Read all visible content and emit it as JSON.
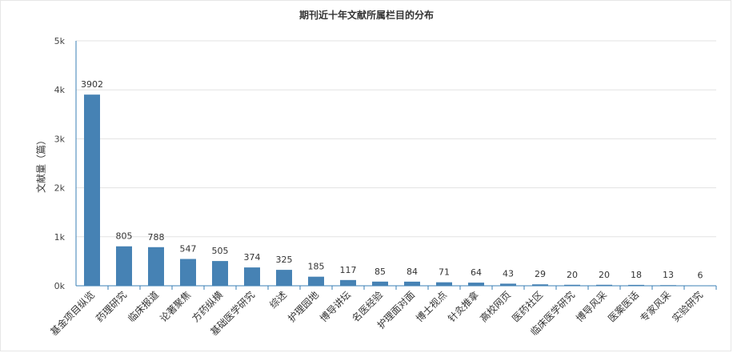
{
  "chart_data": {
    "type": "bar",
    "title": "期刊近十年文献所属栏目的分布",
    "ylabel": "文献量（篇）",
    "xlabel": "",
    "ylim": [
      0,
      5000
    ],
    "yticks": [
      0,
      1000,
      2000,
      3000,
      4000,
      5000
    ],
    "ytick_labels": [
      "0k",
      "1k",
      "2k",
      "3k",
      "4k",
      "5k"
    ],
    "grid": true,
    "legend": "none",
    "bar_color": "#4682b4",
    "categories": [
      "基金项目纵览",
      "药理研究",
      "临床报道",
      "论著聚焦",
      "方药纵横",
      "基础医学研究",
      "综述",
      "护理园地",
      "博导讲坛",
      "名医经验",
      "护理面对面",
      "博士视点",
      "针灸推拿",
      "高校网页",
      "医药社区",
      "临床医学研究",
      "博导风采",
      "医案医话",
      "专家风采",
      "实验研究"
    ],
    "values": [
      3902,
      805,
      788,
      547,
      505,
      374,
      325,
      185,
      117,
      85,
      84,
      71,
      64,
      43,
      29,
      20,
      20,
      18,
      13,
      6
    ]
  }
}
